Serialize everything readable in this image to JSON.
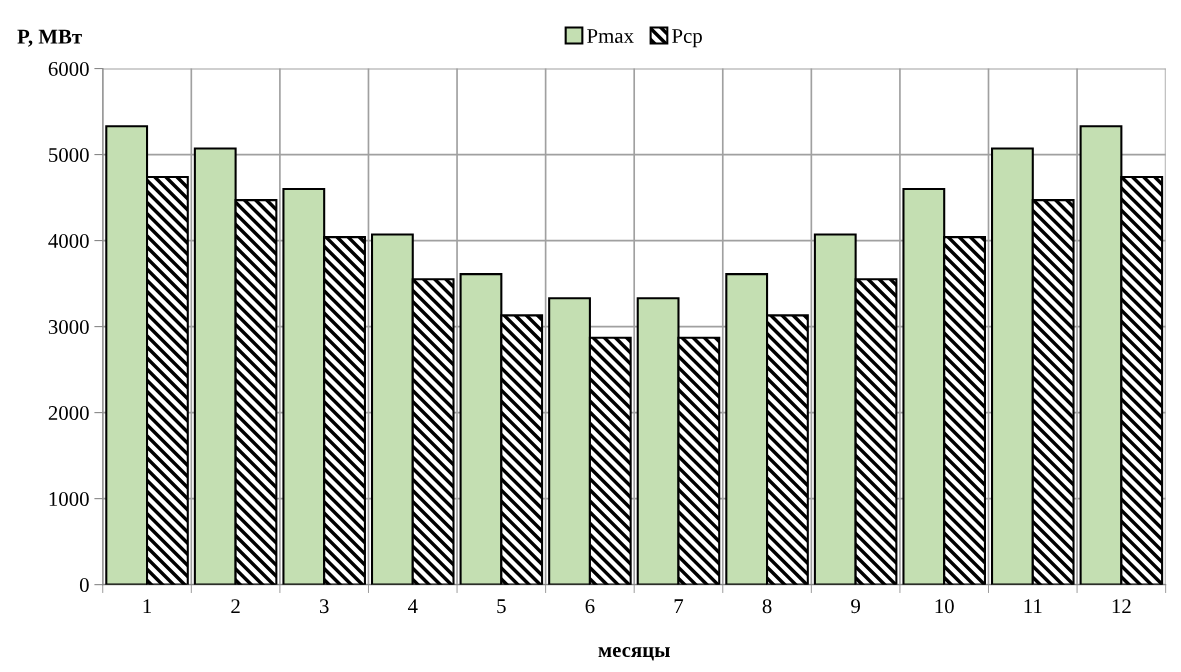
{
  "chart_data": {
    "type": "bar",
    "xlabel": "месяцы",
    "ylabel": "P, МВт",
    "categories": [
      "1",
      "2",
      "3",
      "4",
      "5",
      "6",
      "7",
      "8",
      "9",
      "10",
      "11",
      "12"
    ],
    "series": [
      {
        "name": "Pmax",
        "color": "#c4dfb2",
        "values": [
          5330,
          5070,
          4600,
          4070,
          3610,
          3330,
          3330,
          3610,
          4070,
          4600,
          5070,
          5330
        ]
      },
      {
        "name": "Pср",
        "color": "#000000",
        "values": [
          4740,
          4470,
          4040,
          3550,
          3130,
          2870,
          2870,
          3130,
          3550,
          4040,
          4470,
          4740
        ]
      }
    ],
    "ylim": [
      0,
      6000
    ],
    "yticks": [
      0,
      1000,
      2000,
      3000,
      4000,
      5000,
      6000
    ],
    "grid": true,
    "legend": "top"
  }
}
